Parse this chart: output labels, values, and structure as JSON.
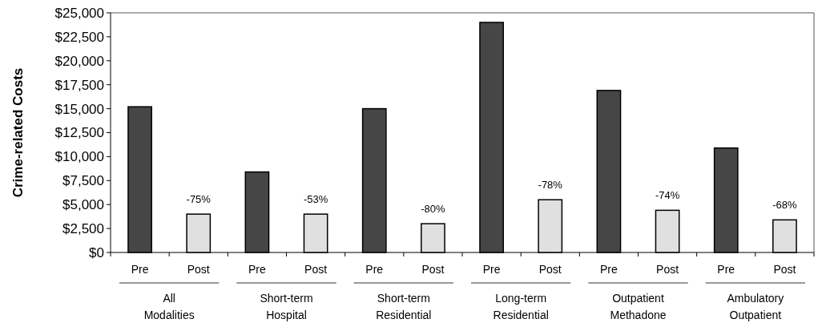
{
  "chart_data": {
    "type": "bar",
    "ylabel": "Crime-related Costs",
    "categories": [
      "Pre",
      "Post",
      "Pre",
      "Post",
      "Pre",
      "Post",
      "Pre",
      "Post",
      "Pre",
      "Post",
      "Pre",
      "Post"
    ],
    "values": [
      15200,
      4000,
      8400,
      4000,
      15000,
      3000,
      24000,
      5500,
      16900,
      4400,
      10900,
      3400
    ],
    "colors": [
      "#464646",
      "#e0e0e0",
      "#464646",
      "#e0e0e0",
      "#464646",
      "#e0e0e0",
      "#464646",
      "#e0e0e0",
      "#464646",
      "#e0e0e0",
      "#464646",
      "#e0e0e0"
    ],
    "annotations": [
      "All Modalities",
      "Short-term Hospital",
      "Short-term Residential",
      "Long-term Residential",
      "Outpatient Methadone",
      "Ambulatory Outpatient",
      "-75%",
      "-53%",
      "-80%",
      "-78%",
      "-74%",
      "-68%"
    ],
    "ylim": [
      0,
      25000
    ],
    "yticks": [
      {
        "value": 0,
        "label": "$0"
      },
      {
        "value": 2500,
        "label": "$2,500"
      },
      {
        "value": 5000,
        "label": "$5,000"
      },
      {
        "value": 7500,
        "label": "$7,500"
      },
      {
        "value": 10000,
        "label": "$10,000"
      },
      {
        "value": 12500,
        "label": "$12,500"
      },
      {
        "value": 15000,
        "label": "$15,000"
      },
      {
        "value": 17500,
        "label": "$17,500"
      },
      {
        "value": 20000,
        "label": "$20,000"
      },
      {
        "value": 22500,
        "label": "$22,500"
      },
      {
        "value": 25000,
        "label": "$25,000"
      }
    ],
    "grid": false
  }
}
